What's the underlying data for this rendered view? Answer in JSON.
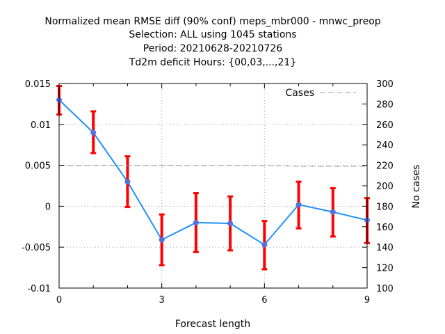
{
  "chart_data": {
    "type": "line",
    "title_lines": [
      "Normalized mean RMSE diff (90% conf) meps_mbr000 - mnwc_preop",
      "Selection: ALL using  1045 stations",
      "Period: 20210628-20210726",
      "Td2m deficit   Hours: {00,03,...,21}"
    ],
    "xlabel": "Forecast length",
    "ylabel": "",
    "y2label": "No cases",
    "xlim": [
      0,
      9
    ],
    "ylim": [
      -0.01,
      0.015
    ],
    "y2lim": [
      100,
      300
    ],
    "xticks": [
      "0",
      "3",
      "6",
      "9"
    ],
    "yticks": [
      "0.015",
      "0.01",
      "0.005",
      "0",
      "-0.005",
      "-0.01"
    ],
    "y2ticks": [
      "300",
      "280",
      "260",
      "240",
      "220",
      "200",
      "180",
      "160",
      "140",
      "120",
      "100"
    ],
    "grid": true,
    "legend_position": "top-right",
    "series": [
      {
        "type": "line",
        "color": "#1e90ff",
        "marker_color": "#5a6ed8",
        "x": [
          0,
          1,
          2,
          3,
          4,
          5,
          6,
          7,
          8,
          9
        ],
        "y": [
          0.013,
          0.009,
          0.003,
          -0.0041,
          -0.002,
          -0.0021,
          -0.0047,
          0.0002,
          -0.0007,
          -0.0017
        ],
        "error_low": [
          0.0112,
          0.0065,
          -0.0001,
          -0.0072,
          -0.0056,
          -0.0054,
          -0.0077,
          -0.0027,
          -0.0037,
          -0.0045
        ],
        "error_high": [
          0.0147,
          0.0116,
          0.0061,
          -0.001,
          0.0016,
          0.0012,
          -0.0018,
          0.003,
          0.0022,
          0.001
        ],
        "error_color": "#ff0000"
      },
      {
        "name": "Cases",
        "type": "line",
        "axis": "y2",
        "style": "dashed",
        "color": "#a0a0a0",
        "x": [
          0,
          1,
          2,
          3,
          4,
          5,
          6,
          7,
          8,
          9
        ],
        "y": [
          220,
          220,
          220,
          220,
          220,
          220,
          220,
          219,
          219,
          219
        ]
      }
    ]
  }
}
